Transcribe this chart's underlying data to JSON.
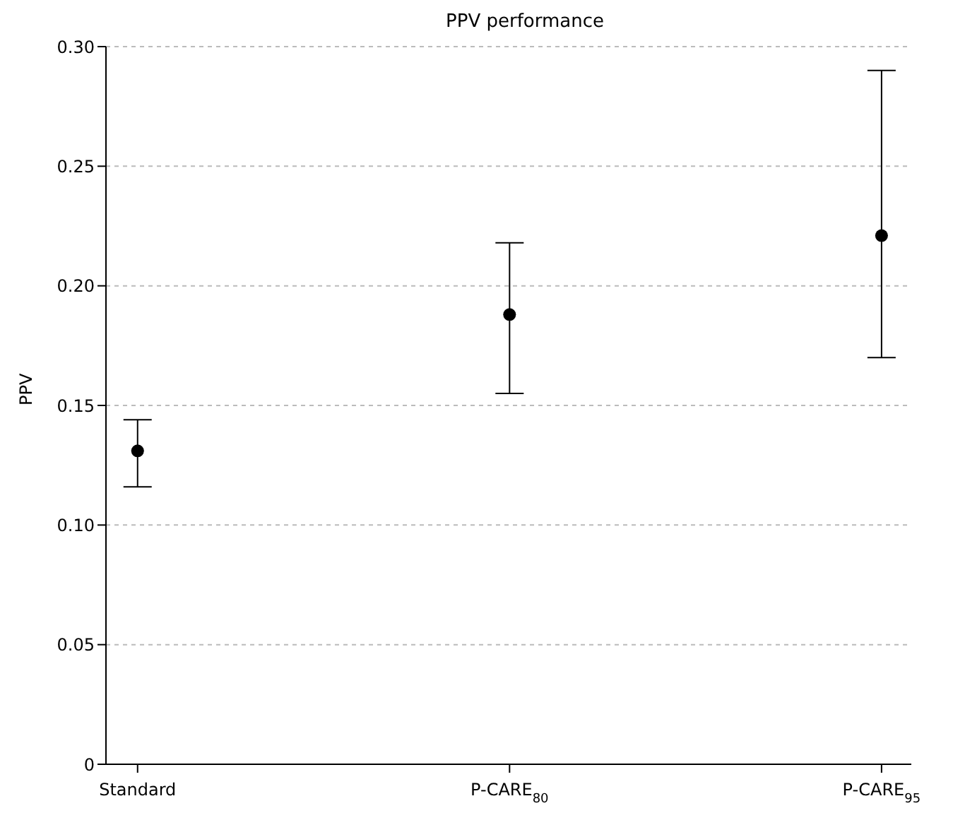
{
  "chart_data": {
    "type": "scatter",
    "title": "PPV performance",
    "ylabel": "PPV",
    "categories": [
      "Standard",
      "P-CARE$_{80}$",
      "P-CARE$_{95}$"
    ],
    "series": [
      {
        "color": "#000000",
        "values": [
          0.131,
          0.188,
          0.221
        ],
        "errors": [
          [
            0.116,
            0.144
          ],
          [
            0.155,
            0.218
          ],
          [
            0.17,
            0.29
          ]
        ]
      }
    ],
    "ylim": [
      0,
      0.3
    ],
    "yticks": [
      {
        "value": 0,
        "label": "0"
      },
      {
        "value": 0.05,
        "label": "0.05"
      },
      {
        "value": 0.1,
        "label": "0.10"
      },
      {
        "value": 0.15,
        "label": "0.15"
      },
      {
        "value": 0.2,
        "label": "0.20"
      },
      {
        "value": 0.25,
        "label": "0.25"
      },
      {
        "value": 0.3,
        "label": "0.30"
      }
    ],
    "grid": "y",
    "marker": "circle",
    "legend": false
  }
}
